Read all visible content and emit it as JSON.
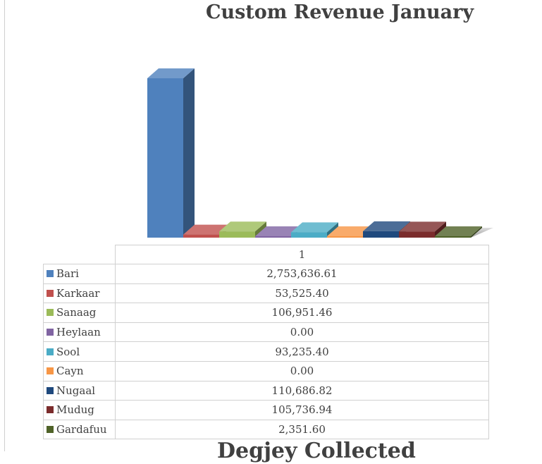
{
  "chart_data": {
    "type": "bar",
    "title": "Custom Revenue January",
    "categories": [
      "1"
    ],
    "series": [
      {
        "name": "Bari",
        "values": [
          2753636.61
        ],
        "color": "#4f81bd",
        "label": "2,753,636.61"
      },
      {
        "name": "Karkaar",
        "values": [
          53525.4
        ],
        "color": "#c0504d",
        "label": "53,525.40"
      },
      {
        "name": "Sanaag",
        "values": [
          106951.46
        ],
        "color": "#9bbb59",
        "label": "106,951.46"
      },
      {
        "name": "Heylaan",
        "values": [
          0.0
        ],
        "color": "#8064a2",
        "label": "0.00"
      },
      {
        "name": "Sool",
        "values": [
          93235.4
        ],
        "color": "#4bacc6",
        "label": "93,235.40"
      },
      {
        "name": "Cayn",
        "values": [
          0.0
        ],
        "color": "#f79646",
        "label": "0.00"
      },
      {
        "name": "Nugaal",
        "values": [
          110686.82
        ],
        "color": "#1f497d",
        "label": "110,686.82"
      },
      {
        "name": "Mudug",
        "values": [
          105736.94
        ],
        "color": "#7b2c2c",
        "label": "105,736.94"
      },
      {
        "name": "Gardafuu",
        "values": [
          2351.6
        ],
        "color": "#4f6228",
        "label": "2,351.60"
      }
    ],
    "ylim": [
      0,
      2900000
    ],
    "grid": false,
    "legend": "data-table"
  },
  "next_heading": "Degjey Collected"
}
